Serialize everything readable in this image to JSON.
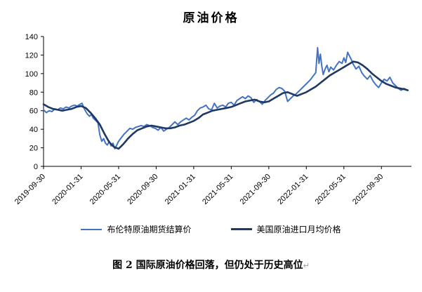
{
  "caption": {
    "text": "图 2 国际原油价格回落，但仍处于历史高位",
    "mark": "↵"
  },
  "chart_data": {
    "type": "line",
    "title": "原油价格",
    "xlabel": "",
    "ylabel": "",
    "ylim": [
      0,
      140
    ],
    "xlim": [
      0,
      39.2
    ],
    "x_unit": "months since 2019-09-30",
    "grid": false,
    "legend_position": "bottom",
    "yticks": [
      0,
      20,
      40,
      60,
      80,
      100,
      120,
      140
    ],
    "xticks": [
      {
        "x": 0,
        "label": "2019-09-30"
      },
      {
        "x": 4,
        "label": "2020-01-31"
      },
      {
        "x": 8,
        "label": "2020-05-31"
      },
      {
        "x": 12,
        "label": "2020-09-30"
      },
      {
        "x": 16,
        "label": "2021-01-31"
      },
      {
        "x": 20,
        "label": "2021-05-31"
      },
      {
        "x": 24,
        "label": "2021-09-30"
      },
      {
        "x": 28,
        "label": "2022-01-31"
      },
      {
        "x": 32,
        "label": "2022-05-31"
      },
      {
        "x": 36,
        "label": "2022-09-30"
      }
    ],
    "series": [
      {
        "name": "布伦特原油期货结算价",
        "color": "#4472c4",
        "width": 2,
        "points": [
          [
            0,
            61
          ],
          [
            0.3,
            58
          ],
          [
            0.6,
            60
          ],
          [
            0.9,
            59
          ],
          [
            1.2,
            62
          ],
          [
            1.5,
            61
          ],
          [
            1.8,
            63
          ],
          [
            2.1,
            62
          ],
          [
            2.4,
            64
          ],
          [
            2.7,
            63
          ],
          [
            3,
            65
          ],
          [
            3.3,
            66
          ],
          [
            3.6,
            65
          ],
          [
            3.9,
            67
          ],
          [
            4.1,
            68
          ],
          [
            4.3,
            63
          ],
          [
            4.5,
            59
          ],
          [
            4.7,
            56
          ],
          [
            4.9,
            54
          ],
          [
            5.1,
            56
          ],
          [
            5.3,
            52
          ],
          [
            5.5,
            50
          ],
          [
            5.8,
            47
          ],
          [
            6,
            34
          ],
          [
            6.2,
            27
          ],
          [
            6.4,
            30
          ],
          [
            6.6,
            25
          ],
          [
            6.8,
            23
          ],
          [
            7,
            27
          ],
          [
            7.2,
            22
          ],
          [
            7.4,
            25
          ],
          [
            7.6,
            19
          ],
          [
            7.8,
            23
          ],
          [
            8,
            27
          ],
          [
            8.3,
            31
          ],
          [
            8.6,
            35
          ],
          [
            8.9,
            38
          ],
          [
            9.2,
            41
          ],
          [
            9.5,
            40
          ],
          [
            9.8,
            42
          ],
          [
            10.1,
            43
          ],
          [
            10.4,
            44
          ],
          [
            10.7,
            43
          ],
          [
            11,
            45
          ],
          [
            11.3,
            44
          ],
          [
            11.6,
            42
          ],
          [
            11.9,
            41
          ],
          [
            12.2,
            39
          ],
          [
            12.5,
            42
          ],
          [
            12.8,
            38
          ],
          [
            13.1,
            40
          ],
          [
            13.4,
            42
          ],
          [
            13.7,
            45
          ],
          [
            14,
            48
          ],
          [
            14.3,
            45
          ],
          [
            14.6,
            48
          ],
          [
            14.9,
            50
          ],
          [
            15.2,
            52
          ],
          [
            15.5,
            50
          ],
          [
            15.8,
            53
          ],
          [
            16.1,
            55
          ],
          [
            16.4,
            60
          ],
          [
            16.7,
            63
          ],
          [
            17,
            64
          ],
          [
            17.3,
            66
          ],
          [
            17.6,
            62
          ],
          [
            17.9,
            61
          ],
          [
            18.2,
            68
          ],
          [
            18.5,
            63
          ],
          [
            18.8,
            65
          ],
          [
            19.1,
            66
          ],
          [
            19.4,
            64
          ],
          [
            19.7,
            68
          ],
          [
            20,
            69
          ],
          [
            20.3,
            66
          ],
          [
            20.6,
            71
          ],
          [
            20.9,
            73
          ],
          [
            21.2,
            75
          ],
          [
            21.5,
            73
          ],
          [
            21.8,
            76
          ],
          [
            22.1,
            74
          ],
          [
            22.4,
            69
          ],
          [
            22.7,
            72
          ],
          [
            23,
            70
          ],
          [
            23.3,
            67
          ],
          [
            23.6,
            71
          ],
          [
            23.9,
            74
          ],
          [
            24.2,
            77
          ],
          [
            24.5,
            79
          ],
          [
            24.8,
            83
          ],
          [
            25.1,
            85
          ],
          [
            25.4,
            84
          ],
          [
            25.7,
            81
          ],
          [
            26,
            70
          ],
          [
            26.3,
            73
          ],
          [
            26.6,
            76
          ],
          [
            26.9,
            78
          ],
          [
            27.2,
            81
          ],
          [
            27.5,
            84
          ],
          [
            27.8,
            87
          ],
          [
            28.1,
            90
          ],
          [
            28.4,
            93
          ],
          [
            28.7,
            97
          ],
          [
            29,
            101
          ],
          [
            29.2,
            128
          ],
          [
            29.35,
            111
          ],
          [
            29.5,
            121
          ],
          [
            29.65,
            108
          ],
          [
            29.8,
            99
          ],
          [
            30,
            105
          ],
          [
            30.2,
            109
          ],
          [
            30.4,
            102
          ],
          [
            30.6,
            107
          ],
          [
            30.9,
            104
          ],
          [
            31.2,
            109
          ],
          [
            31.5,
            113
          ],
          [
            31.8,
            111
          ],
          [
            32,
            117
          ],
          [
            32.2,
            112
          ],
          [
            32.4,
            123
          ],
          [
            32.6,
            119
          ],
          [
            32.8,
            115
          ],
          [
            33,
            110
          ],
          [
            33.3,
            105
          ],
          [
            33.6,
            108
          ],
          [
            33.9,
            101
          ],
          [
            34.2,
            97
          ],
          [
            34.5,
            94
          ],
          [
            34.8,
            98
          ],
          [
            35.1,
            92
          ],
          [
            35.4,
            88
          ],
          [
            35.7,
            85
          ],
          [
            36,
            90
          ],
          [
            36.3,
            94
          ],
          [
            36.6,
            92
          ],
          [
            36.9,
            96
          ],
          [
            37.2,
            90
          ],
          [
            37.5,
            87
          ],
          [
            37.8,
            84
          ],
          [
            38.1,
            82
          ],
          [
            38.4,
            84
          ],
          [
            38.8,
            82
          ]
        ]
      },
      {
        "name": "美国原油进口月均价格",
        "color": "#1f3864",
        "width": 2.6,
        "points": [
          [
            0,
            67
          ],
          [
            0.5,
            64
          ],
          [
            1,
            62
          ],
          [
            1.5,
            61
          ],
          [
            2,
            60
          ],
          [
            2.5,
            61
          ],
          [
            3,
            62
          ],
          [
            3.5,
            64
          ],
          [
            4,
            65
          ],
          [
            4.5,
            63
          ],
          [
            5,
            58
          ],
          [
            5.5,
            52
          ],
          [
            6,
            45
          ],
          [
            6.5,
            35
          ],
          [
            7,
            26
          ],
          [
            7.5,
            21
          ],
          [
            8,
            19
          ],
          [
            8.5,
            24
          ],
          [
            9,
            30
          ],
          [
            9.5,
            35
          ],
          [
            10,
            39
          ],
          [
            10.5,
            41
          ],
          [
            11,
            43
          ],
          [
            11.5,
            44
          ],
          [
            12,
            43
          ],
          [
            12.5,
            42
          ],
          [
            13,
            41
          ],
          [
            13.5,
            41
          ],
          [
            14,
            42
          ],
          [
            14.5,
            44
          ],
          [
            15,
            45
          ],
          [
            15.5,
            47
          ],
          [
            16,
            49
          ],
          [
            16.5,
            52
          ],
          [
            17,
            56
          ],
          [
            17.5,
            58
          ],
          [
            18,
            60
          ],
          [
            18.5,
            61
          ],
          [
            19,
            62
          ],
          [
            19.5,
            63
          ],
          [
            20,
            64
          ],
          [
            20.5,
            66
          ],
          [
            21,
            68
          ],
          [
            21.5,
            70
          ],
          [
            22,
            71
          ],
          [
            22.5,
            72
          ],
          [
            23,
            70
          ],
          [
            23.5,
            69
          ],
          [
            24,
            70
          ],
          [
            24.5,
            73
          ],
          [
            25,
            76
          ],
          [
            25.5,
            79
          ],
          [
            26,
            80
          ],
          [
            26.5,
            78
          ],
          [
            27,
            76
          ],
          [
            27.5,
            78
          ],
          [
            28,
            80
          ],
          [
            28.5,
            83
          ],
          [
            29,
            86
          ],
          [
            29.5,
            90
          ],
          [
            30,
            94
          ],
          [
            30.5,
            98
          ],
          [
            31,
            101
          ],
          [
            31.5,
            104
          ],
          [
            32,
            107
          ],
          [
            32.5,
            110
          ],
          [
            33,
            113
          ],
          [
            33.5,
            112
          ],
          [
            34,
            109
          ],
          [
            34.5,
            105
          ],
          [
            35,
            100
          ],
          [
            35.5,
            96
          ],
          [
            36,
            92
          ],
          [
            36.5,
            89
          ],
          [
            37,
            87
          ],
          [
            37.5,
            85
          ],
          [
            38,
            84
          ],
          [
            38.5,
            83
          ],
          [
            38.8,
            82
          ]
        ]
      }
    ]
  }
}
